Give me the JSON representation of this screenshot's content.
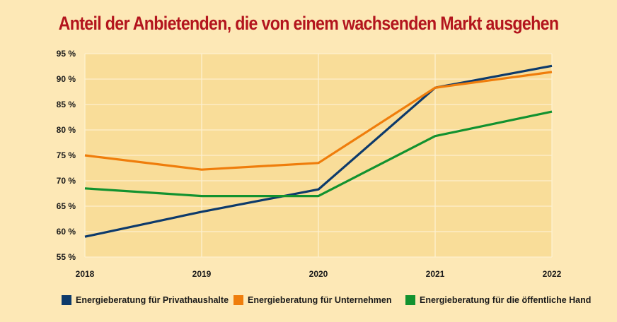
{
  "chart_data": {
    "type": "line",
    "title": "Anteil der Anbietenden, die von einem wachsenden Markt ausgehen",
    "xlabel": "",
    "ylabel": "",
    "categories": [
      "2018",
      "2019",
      "2020",
      "2021",
      "2022"
    ],
    "ylim": [
      55,
      95
    ],
    "yticks": [
      "55 %",
      "60 %",
      "65 %",
      "70 %",
      "75 %",
      "80 %",
      "85 %",
      "90 %",
      "95 %"
    ],
    "grid": true,
    "legend_position": "bottom",
    "series": [
      {
        "name": "Energieberatung für Privathaushalte",
        "color": "#0d3a6b",
        "values": [
          59,
          63.9,
          68.3,
          88.3,
          92.6
        ]
      },
      {
        "name": "Energieberatung für Unternehmen",
        "color": "#ef7d0b",
        "values": [
          75,
          72.2,
          73.5,
          88.3,
          91.4
        ]
      },
      {
        "name": "Energieberatung für die öffentliche Hand",
        "color": "#12922f",
        "values": [
          68.5,
          67,
          67,
          78.8,
          83.6
        ]
      }
    ]
  }
}
